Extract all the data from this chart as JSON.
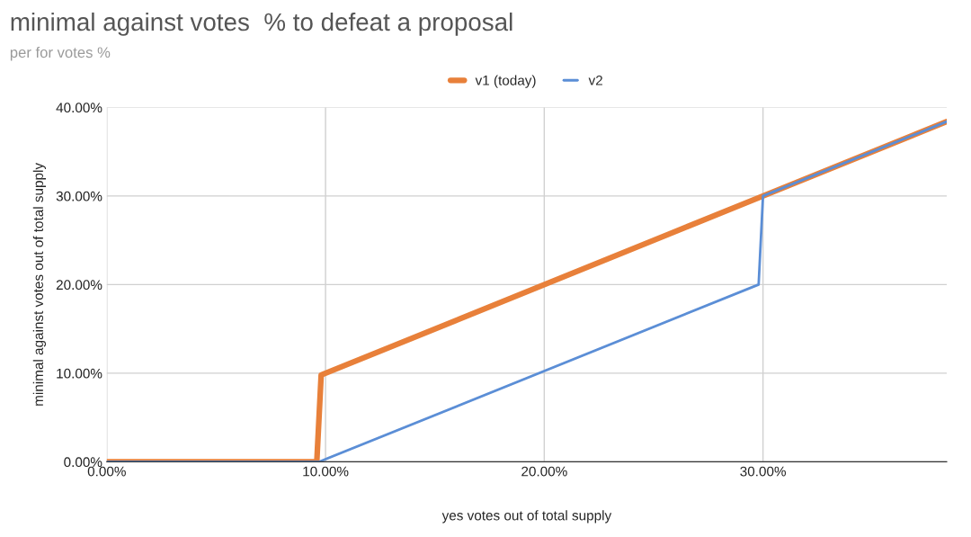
{
  "chart_data": {
    "type": "line",
    "title": "minimal against votes  % to defeat a proposal",
    "subtitle": "per for votes %",
    "xlabel": "yes votes out of total supply",
    "ylabel": "minimal against votes out of total supply",
    "series": [
      {
        "name": "v1 (today)",
        "color": "#e8803a",
        "x": [
          0,
          9.6,
          9.8,
          30,
          38.4
        ],
        "values": [
          0,
          0,
          9.8,
          30,
          38.4
        ]
      },
      {
        "name": "v2",
        "color": "#5b8ed6",
        "x": [
          0,
          9.7,
          29.8,
          30,
          38.4
        ],
        "values": [
          0,
          0,
          20,
          30,
          38.4
        ]
      }
    ],
    "xlim": [
      0,
      38.4
    ],
    "xticks": [
      {
        "value": 0,
        "label": "0.00%"
      },
      {
        "value": 10,
        "label": "10.00%"
      },
      {
        "value": 20,
        "label": "20.00%"
      },
      {
        "value": 30,
        "label": "30.00%"
      }
    ],
    "ylim": [
      0,
      40
    ],
    "yticks": [
      {
        "value": 0,
        "label": "0.00%"
      },
      {
        "value": 10,
        "label": "10.00%"
      },
      {
        "value": 20,
        "label": "20.00%"
      },
      {
        "value": 30,
        "label": "30.00%"
      },
      {
        "value": 40,
        "label": "40.00%"
      }
    ],
    "grid": true,
    "legend": "top",
    "marker": "none",
    "line_style": "solid"
  }
}
